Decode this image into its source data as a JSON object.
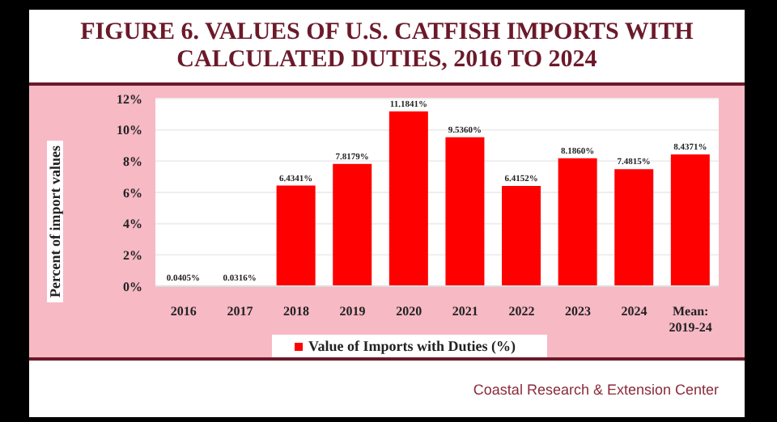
{
  "chart_data": {
    "type": "bar",
    "title": "FIGURE 6. VALUES OF U.S. CATFISH IMPORTS WITH CALCULATED DUTIES, 2016 TO 2024",
    "ylabel": "Percent of import values",
    "categories": [
      "2016",
      "2017",
      "2018",
      "2019",
      "2020",
      "2021",
      "2022",
      "2023",
      "2024",
      "Mean: 2019-24"
    ],
    "series": [
      {
        "name": "Value of Imports with Duties (%)",
        "color": "#ff0000",
        "values": [
          0.0405,
          0.0316,
          6.4341,
          7.8179,
          11.1841,
          9.536,
          6.4152,
          8.186,
          7.4815,
          8.4371
        ],
        "value_labels": [
          "0.0405%",
          "0.0316%",
          "6.4341%",
          "7.8179%",
          "11.1841%",
          "9.5360%",
          "6.4152%",
          "8.1860%",
          "7.4815%",
          "8.4371%"
        ]
      }
    ],
    "ylim": [
      0,
      12
    ],
    "yticks": [
      {
        "value": 0,
        "label": "0%"
      },
      {
        "value": 2,
        "label": "2%"
      },
      {
        "value": 4,
        "label": "4%"
      },
      {
        "value": 6,
        "label": "6%"
      },
      {
        "value": 8,
        "label": "8%"
      },
      {
        "value": 10,
        "label": "10%"
      },
      {
        "value": 12,
        "label": "12%"
      }
    ],
    "grid": "y",
    "legend": "bottom",
    "annotations": [
      "Coastal Research & Extension Center"
    ]
  }
}
